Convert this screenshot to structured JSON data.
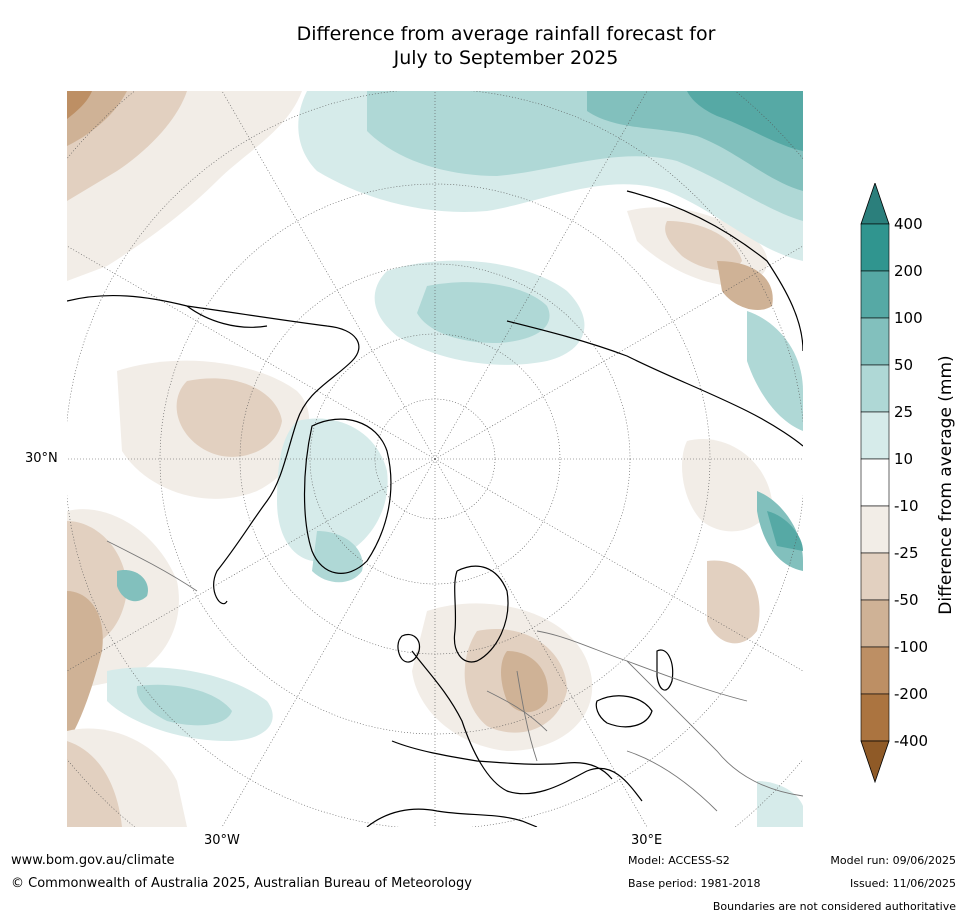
{
  "title_line1": "Difference from average rainfall forecast for",
  "title_line2": "July to September 2025",
  "map": {
    "projection": "north polar stereographic",
    "lat_label": "30°N",
    "lon_labels": [
      "30°W",
      "30°E"
    ]
  },
  "colorbar": {
    "title": "Difference from average (mm)",
    "ticks": [
      "400",
      "200",
      "100",
      "50",
      "25",
      "10",
      "-10",
      "-25",
      "-50",
      "-100",
      "-200",
      "-400"
    ],
    "colors": {
      "wet_extreme": "#2b7f7c",
      "wet_400": "#30958f",
      "wet_200": "#56a9a5",
      "wet_100": "#82c0bd",
      "wet_50": "#afd8d6",
      "wet_25": "#d6ebea",
      "neutral": "#ffffff",
      "dry_10": "#f2ede7",
      "dry_25": "#e2d0c0",
      "dry_50": "#cfb296",
      "dry_100": "#bd8f64",
      "dry_200": "#ab7440",
      "dry_extreme": "#8f5a27"
    }
  },
  "footer": {
    "url": "www.bom.gov.au/climate",
    "copyright": "© Commonwealth of Australia 2025, Australian Bureau of Meteorology",
    "model": "Model: ACCESS-S2",
    "base_period": "Base period: 1981-2018",
    "model_run": "Model run: 09/06/2025",
    "issued": "Issued: 11/06/2025",
    "disclaimer": "Boundaries are not considered authoritative"
  }
}
